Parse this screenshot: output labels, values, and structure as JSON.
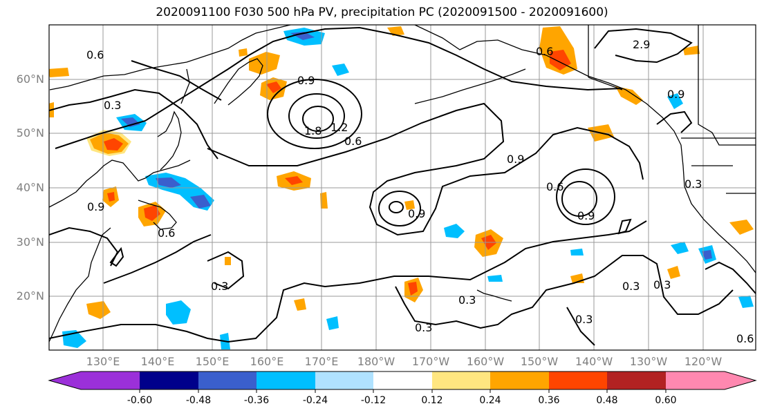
{
  "title": "2020091100 F030 500 hPa PV, precipitation PC (2020091500 - 2020091600)",
  "lat_labels": [
    "60°N",
    "50°N",
    "40°N",
    "30°N",
    "20°N"
  ],
  "lon_labels": [
    "130°E",
    "140°E",
    "150°E",
    "160°E",
    "170°E",
    "180°W",
    "170°W",
    "160°W",
    "150°W",
    "140°W",
    "130°W",
    "120°W"
  ],
  "contour_labels": [
    "0.6",
    "0.3",
    "0.9",
    "1.8",
    "1.2",
    "0.6",
    "0.9",
    "0.6",
    "0.9",
    "0.3",
    "0.3",
    "0.3",
    "0.3",
    "0.3",
    "0.3",
    "0.6",
    "0.9",
    "2.9",
    "0.6",
    "0.9",
    "0.6",
    "0.9",
    "0.3"
  ],
  "colorbar": {
    "ticks": [
      "-0.60",
      "-0.48",
      "-0.36",
      "-0.24",
      "-0.12",
      "0.12",
      "0.24",
      "0.36",
      "0.48",
      "0.60"
    ],
    "colors": [
      "#9b30d9",
      "#00008b",
      "#3a5fcd",
      "#00bfff",
      "#b0e2ff",
      "#ffffff",
      "#ffe680",
      "#ffa500",
      "#ff4500",
      "#b22222",
      "#ff88b0"
    ]
  }
}
